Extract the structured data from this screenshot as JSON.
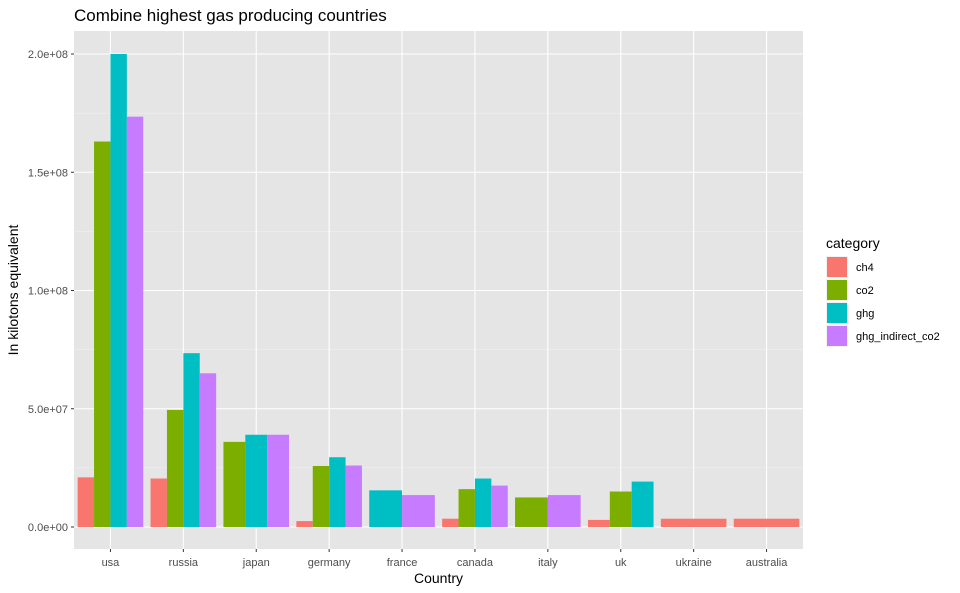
{
  "chart_data": {
    "type": "bar",
    "title": "Combine highest gas producing countries",
    "xlabel": "Country",
    "ylabel": "In kilotons equivalent",
    "categories": [
      "usa",
      "russia",
      "japan",
      "germany",
      "france",
      "canada",
      "italy",
      "uk",
      "ukraine",
      "australia"
    ],
    "ylim": [
      0,
      210000000
    ],
    "y_ticks": [
      0,
      50000000,
      100000000,
      150000000,
      200000000
    ],
    "y_tick_labels": [
      "0.0e+00",
      "5.0e+07",
      "1.0e+08",
      "1.5e+08",
      "2.0e+08"
    ],
    "grid": true,
    "legend": {
      "title": "category",
      "position": "right"
    },
    "background": "#E5E5E5",
    "series": [
      {
        "name": "ch4",
        "color": "#F8766D",
        "values": [
          21000000,
          20500000,
          null,
          2500000,
          null,
          3500000,
          null,
          3000000,
          3500000,
          3500000
        ]
      },
      {
        "name": "co2",
        "color": "#7CAE00",
        "values": [
          163000000,
          49500000,
          36000000,
          25800000,
          null,
          16000000,
          12500000,
          15000000,
          null,
          null
        ]
      },
      {
        "name": "ghg",
        "color": "#00BFC4",
        "values": [
          200000000,
          73500000,
          39000000,
          29500000,
          15500000,
          20500000,
          null,
          19200000,
          null,
          null
        ]
      },
      {
        "name": "ghg_indirect_co2",
        "color": "#C77CFF",
        "values": [
          173500000,
          65000000,
          39000000,
          26000000,
          13500000,
          17500000,
          13500000,
          null,
          null,
          null
        ]
      }
    ]
  }
}
